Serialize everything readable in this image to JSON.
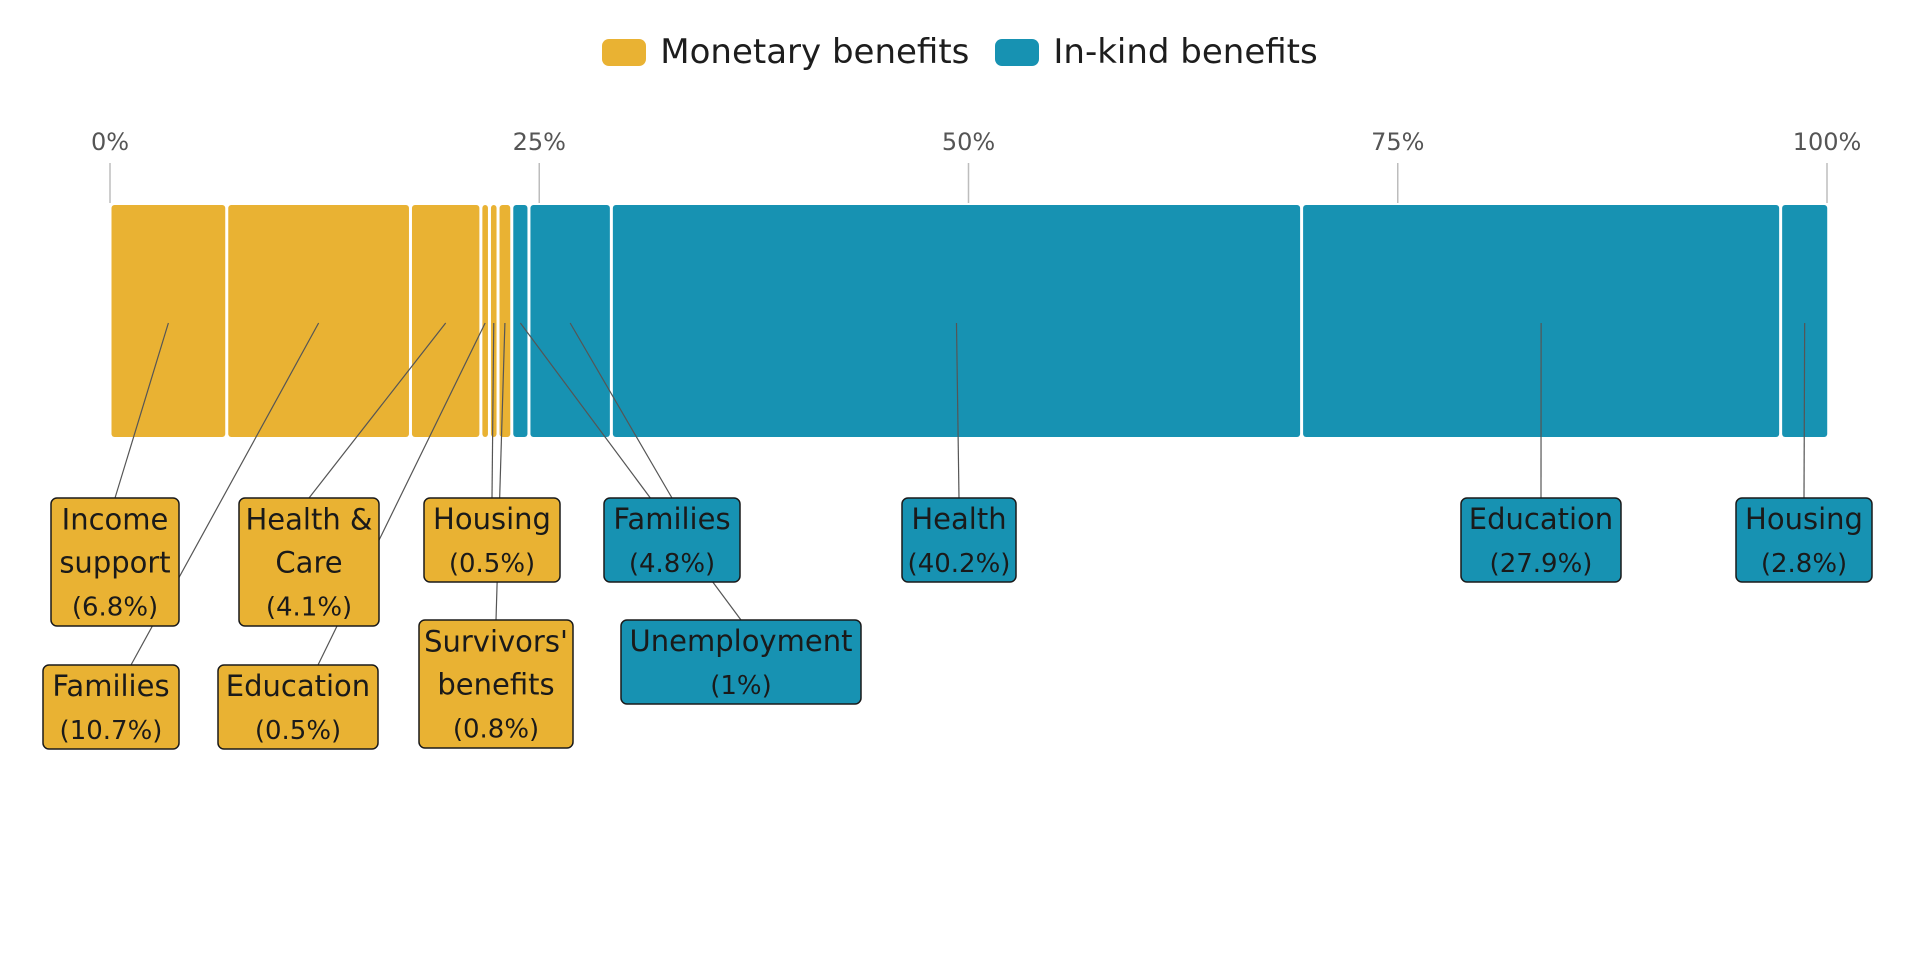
{
  "legend": {
    "monetary_label": "Monetary benefits",
    "inkind_label": "In-kind benefits"
  },
  "colors": {
    "monetary": "#E9B233",
    "in_kind": "#1792B2"
  },
  "chart_data": {
    "type": "bar",
    "orientation": "horizontal-stacked-100",
    "axis": {
      "min": 0,
      "max": 100,
      "ticks": [
        0,
        25,
        50,
        75,
        100
      ],
      "tick_labels": [
        "0%",
        "25%",
        "50%",
        "75%",
        "100%"
      ]
    },
    "segments": [
      {
        "label_lines": [
          "Income",
          "support"
        ],
        "value": 6.8,
        "value_text": "(6.8%)",
        "group": "monetary"
      },
      {
        "label_lines": [
          "Families"
        ],
        "value": 10.7,
        "value_text": "(10.7%)",
        "group": "monetary"
      },
      {
        "label_lines": [
          "Health &",
          "Care"
        ],
        "value": 4.1,
        "value_text": "(4.1%)",
        "group": "monetary"
      },
      {
        "label_lines": [
          "Education"
        ],
        "value": 0.5,
        "value_text": "(0.5%)",
        "group": "monetary"
      },
      {
        "label_lines": [
          "Housing"
        ],
        "value": 0.5,
        "value_text": "(0.5%)",
        "group": "monetary"
      },
      {
        "label_lines": [
          "Survivors'",
          "benefits"
        ],
        "value": 0.8,
        "value_text": "(0.8%)",
        "group": "monetary"
      },
      {
        "label_lines": [
          "Unemployment"
        ],
        "value": 1,
        "value_text": "(1%)",
        "group": "in_kind"
      },
      {
        "label_lines": [
          "Families"
        ],
        "value": 4.8,
        "value_text": "(4.8%)",
        "group": "in_kind"
      },
      {
        "label_lines": [
          "Health"
        ],
        "value": 40.2,
        "value_text": "(40.2%)",
        "group": "in_kind"
      },
      {
        "label_lines": [
          "Education"
        ],
        "value": 27.9,
        "value_text": "(27.9%)",
        "group": "in_kind"
      },
      {
        "label_lines": [
          "Housing"
        ],
        "value": 2.8,
        "value_text": "(2.8%)",
        "group": "in_kind"
      }
    ]
  }
}
